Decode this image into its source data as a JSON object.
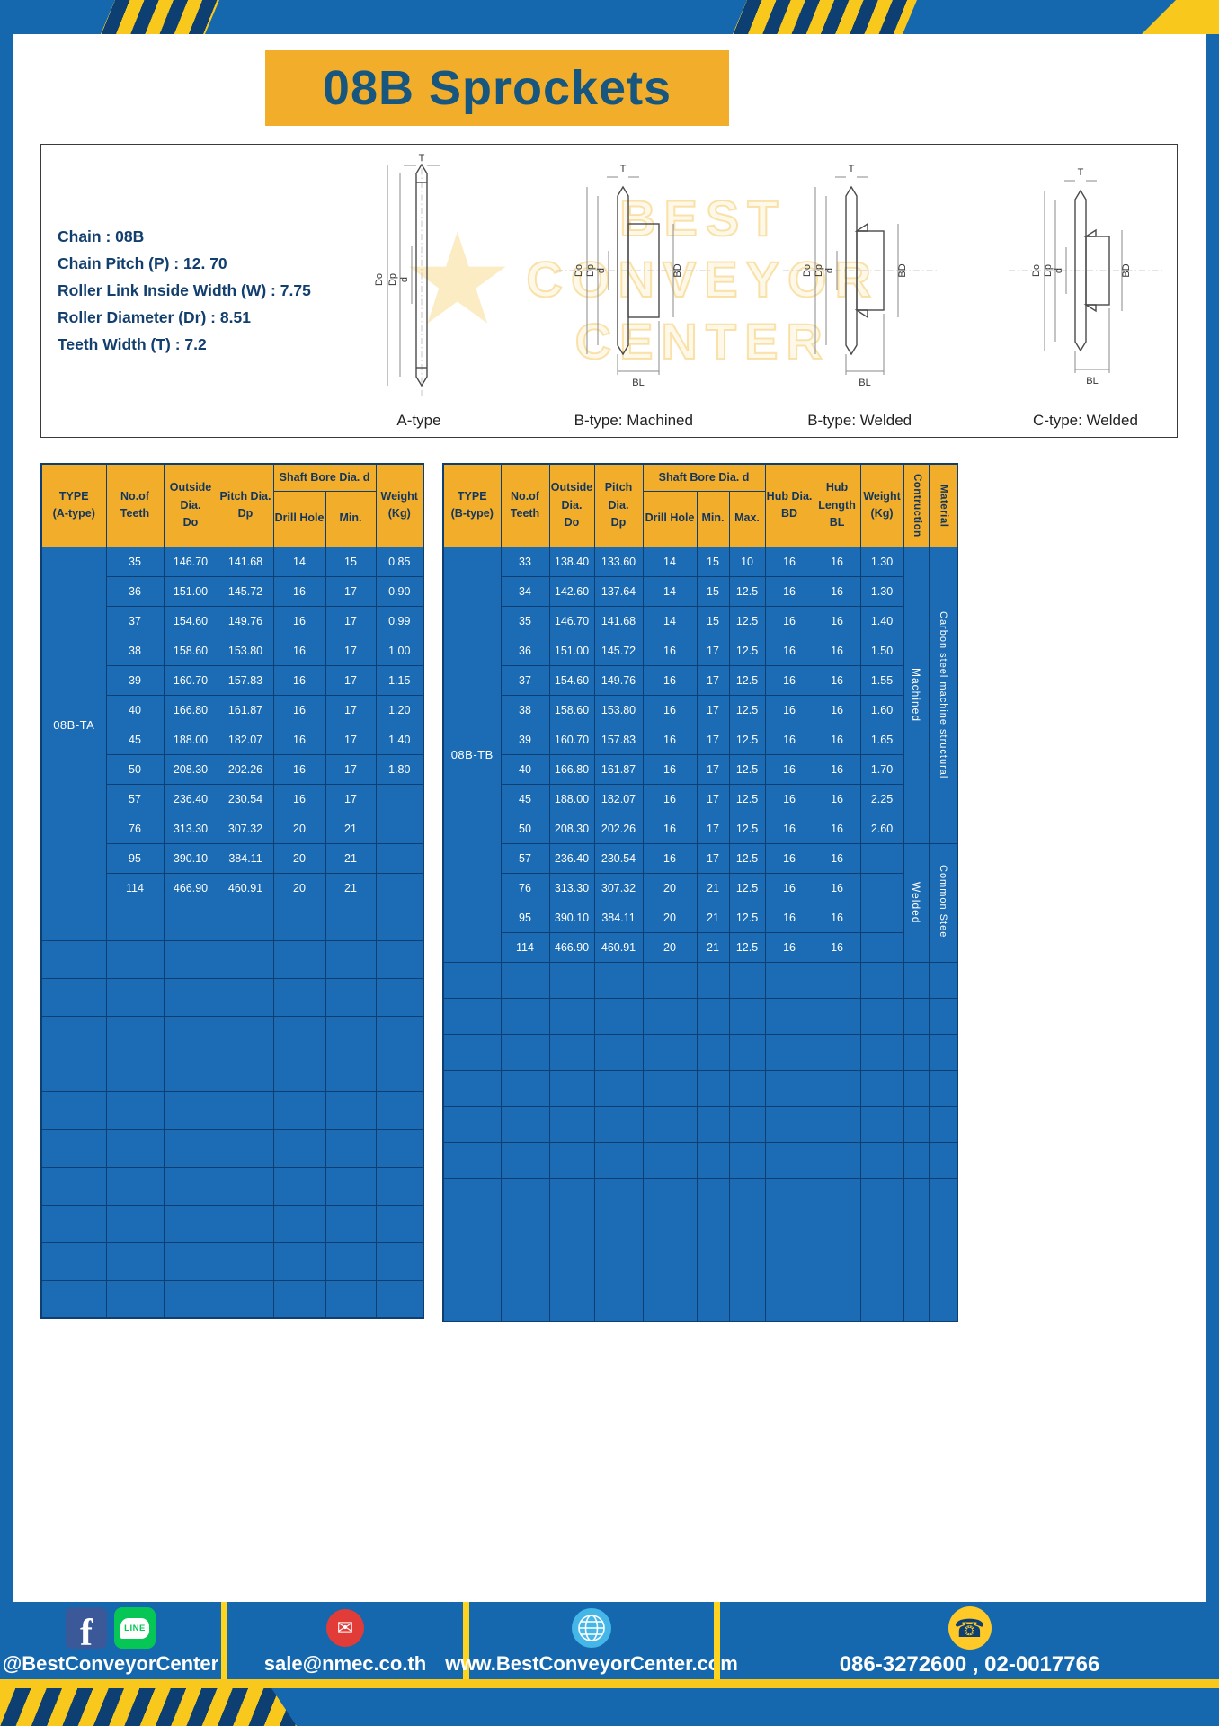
{
  "colors": {
    "blue": "#1567ae",
    "table_blue": "#1b6cb4",
    "yellow": "#f2ae2b",
    "hazard_yellow": "#f8c81d",
    "navy": "#0d3f72",
    "title_color": "#17567f",
    "spec_color": "#123f6e",
    "line_green": "#06c755",
    "facebook_blue": "#3b5998",
    "email_red": "#e23c39",
    "globe_blue": "#45b6e8",
    "phone_yellow": "#ffc928"
  },
  "banner": {
    "title": "08B Sprockets"
  },
  "specs": {
    "lines": [
      "Chain  :  08B",
      "Chain Pitch (P)  :  12. 70",
      "Roller Link Inside Width (W)  :  7.75",
      "Roller Diameter (Dr)  :  8.51",
      "Teeth Width (T)  :  7.2"
    ]
  },
  "diagrams": {
    "captions": [
      "A-type",
      "B-type: Machined",
      "B-type: Welded",
      "C-type: Welded"
    ],
    "labels": {
      "t": "T",
      "do": "Do",
      "dp": "Dp",
      "d": "d",
      "bd": "BD",
      "bl": "BL"
    }
  },
  "watermark": {
    "star": "★",
    "lines": [
      "BEST",
      "CONVEYOR",
      "CENTER"
    ]
  },
  "table_a": {
    "headers": {
      "type": "TYPE\n(A-type)",
      "teeth": "No.of\nTeeth",
      "outside": "Outside\nDia.\nDo",
      "pitch": "Pitch Dia.\nDp",
      "shaft_group": "Shaft Bore Dia. d",
      "drill": "Drill Hole",
      "min": "Min.",
      "weight": "Weight\n(Kg)"
    },
    "group_label": "08B-TA",
    "rows": [
      [
        "35",
        "146.70",
        "141.68",
        "14",
        "15",
        "0.85"
      ],
      [
        "36",
        "151.00",
        "145.72",
        "16",
        "17",
        "0.90"
      ],
      [
        "37",
        "154.60",
        "149.76",
        "16",
        "17",
        "0.99"
      ],
      [
        "38",
        "158.60",
        "153.80",
        "16",
        "17",
        "1.00"
      ],
      [
        "39",
        "160.70",
        "157.83",
        "16",
        "17",
        "1.15"
      ],
      [
        "40",
        "166.80",
        "161.87",
        "16",
        "17",
        "1.20"
      ],
      [
        "45",
        "188.00",
        "182.07",
        "16",
        "17",
        "1.40"
      ],
      [
        "50",
        "208.30",
        "202.26",
        "16",
        "17",
        "1.80"
      ],
      [
        "57",
        "236.40",
        "230.54",
        "16",
        "17",
        ""
      ],
      [
        "76",
        "313.30",
        "307.32",
        "20",
        "21",
        ""
      ],
      [
        "95",
        "390.10",
        "384.11",
        "20",
        "21",
        ""
      ],
      [
        "114",
        "466.90",
        "460.91",
        "20",
        "21",
        ""
      ]
    ],
    "empty_row_count": 11
  },
  "table_b": {
    "headers": {
      "type": "TYPE\n(B-type)",
      "teeth": "No.of\nTeeth",
      "outside": "Outside\nDia.\nDo",
      "pitch": "Pitch Dia.\nDp",
      "shaft_group": "Shaft Bore Dia. d",
      "drill": "Drill Hole",
      "min": "Min.",
      "max": "Max.",
      "hub_dia": "Hub Dia.\nBD",
      "hub_len": "Hub\nLength\nBL",
      "weight": "Weight\n(Kg)",
      "construction": "Contruction",
      "material": "Material"
    },
    "group_label": "08B-TB",
    "rows": [
      [
        "33",
        "138.40",
        "133.60",
        "14",
        "15",
        "10",
        "16",
        "16",
        "1.30"
      ],
      [
        "34",
        "142.60",
        "137.64",
        "14",
        "15",
        "12.5",
        "16",
        "16",
        "1.30"
      ],
      [
        "35",
        "146.70",
        "141.68",
        "14",
        "15",
        "12.5",
        "16",
        "16",
        "1.40"
      ],
      [
        "36",
        "151.00",
        "145.72",
        "16",
        "17",
        "12.5",
        "16",
        "16",
        "1.50"
      ],
      [
        "37",
        "154.60",
        "149.76",
        "16",
        "17",
        "12.5",
        "16",
        "16",
        "1.55"
      ],
      [
        "38",
        "158.60",
        "153.80",
        "16",
        "17",
        "12.5",
        "16",
        "16",
        "1.60"
      ],
      [
        "39",
        "160.70",
        "157.83",
        "16",
        "17",
        "12.5",
        "16",
        "16",
        "1.65"
      ],
      [
        "40",
        "166.80",
        "161.87",
        "16",
        "17",
        "12.5",
        "16",
        "16",
        "1.70"
      ],
      [
        "45",
        "188.00",
        "182.07",
        "16",
        "17",
        "12.5",
        "16",
        "16",
        "2.25"
      ],
      [
        "50",
        "208.30",
        "202.26",
        "16",
        "17",
        "12.5",
        "16",
        "16",
        "2.60"
      ],
      [
        "57",
        "236.40",
        "230.54",
        "16",
        "17",
        "12.5",
        "16",
        "16",
        ""
      ],
      [
        "76",
        "313.30",
        "307.32",
        "20",
        "21",
        "12.5",
        "16",
        "16",
        ""
      ],
      [
        "95",
        "390.10",
        "384.11",
        "20",
        "21",
        "12.5",
        "16",
        "16",
        ""
      ],
      [
        "114",
        "466.90",
        "460.91",
        "20",
        "21",
        "12.5",
        "16",
        "16",
        ""
      ]
    ],
    "construction_groups": [
      {
        "label": "Machined",
        "rows": 10
      },
      {
        "label": "Welded",
        "rows": 4
      }
    ],
    "material_groups": [
      {
        "label": "Carbon steel  machine structural",
        "rows": 10
      },
      {
        "label": "Common  Steel",
        "rows": 4
      }
    ],
    "empty_row_count": 10
  },
  "footer": {
    "sections": [
      {
        "label": "@BestConveyorCenter"
      },
      {
        "label": "sale@nmec.co.th"
      },
      {
        "label": "www.BestConveyorCenter.com"
      },
      {
        "label": "086-3272600 , 02-0017766"
      }
    ],
    "icon_glyphs": {
      "facebook": "f",
      "line": "LINE",
      "email": "✉",
      "phone": "☎"
    }
  }
}
